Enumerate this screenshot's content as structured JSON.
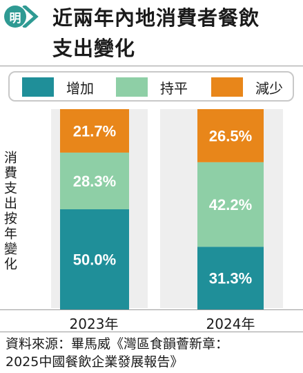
{
  "header": {
    "badge_text": "明",
    "title_line1": "近兩年內地消費者餐飲",
    "title_line2": "支出變化"
  },
  "colors": {
    "brand": "#2f9a93",
    "increase": "#1f8f99",
    "flat": "#8ecfa6",
    "decrease": "#e8861a",
    "plot_background": "#eeeeee"
  },
  "chart_data": {
    "type": "bar",
    "stacked": true,
    "percent_stacked": true,
    "categories": [
      "2023年",
      "2024年"
    ],
    "series": [
      {
        "name": "增加",
        "values": [
          50.0,
          31.3
        ],
        "labels": [
          "50.0%",
          "31.3%"
        ]
      },
      {
        "name": "持平",
        "values": [
          28.3,
          42.2
        ],
        "labels": [
          "28.3%",
          "42.2%"
        ]
      },
      {
        "name": "減少",
        "values": [
          21.7,
          26.5
        ],
        "labels": [
          "21.7%",
          "26.5%"
        ]
      }
    ],
    "ylabel": "消費支出按年變化",
    "ylim": [
      0,
      100
    ],
    "legend_position": "top",
    "grid": false
  },
  "source": {
    "line1": "資料來源：畢馬威《灣區食韻薈新章：",
    "line2": "2025中國餐飲企業發展報告》"
  }
}
